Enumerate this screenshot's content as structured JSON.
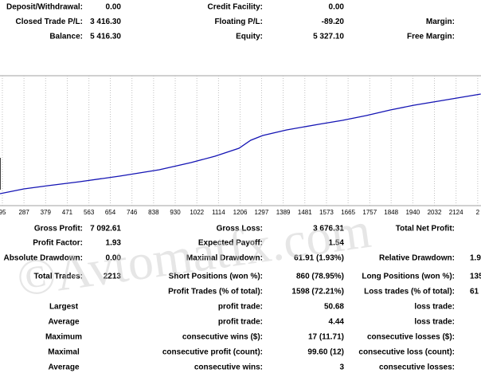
{
  "summary": {
    "rows": [
      {
        "c1": [
          "Deposit/Withdrawal:",
          "0.00"
        ],
        "c2": [
          "Credit Facility:",
          "0.00"
        ]
      },
      {
        "c1": [
          "Closed Trade P/L:",
          "3 416.30"
        ],
        "c2": [
          "Floating P/L:",
          "-89.20"
        ],
        "c3": [
          "Margin:"
        ]
      },
      {
        "c1": [
          "Balance:",
          "5 416.30"
        ],
        "c2": [
          "Equity:",
          "5 327.10"
        ],
        "c3": [
          "Free Margin:"
        ]
      }
    ]
  },
  "chart_data": {
    "type": "line",
    "x": [
      185,
      287,
      388,
      524,
      693,
      862,
      997,
      1099,
      1201,
      1251,
      1302,
      1404,
      1539,
      1641,
      1742,
      1844,
      1945,
      2047,
      2148,
      2229
    ],
    "series": [
      {
        "color": "#1414b4",
        "values": [
          2105,
          2267,
          2375,
          2510,
          2699,
          2915,
          3158,
          3374,
          3644,
          3914,
          4076,
          4265,
          4454,
          4589,
          4751,
          4940,
          5102,
          5237,
          5372,
          5480
        ]
      }
    ],
    "xlim": [
      185,
      2230
    ],
    "ylim": [
      1700,
      6100
    ],
    "xticks": [
      {
        "value": 195,
        "label": "95"
      },
      287,
      379,
      471,
      563,
      654,
      746,
      838,
      930,
      1022,
      1114,
      1206,
      1297,
      1389,
      1481,
      1573,
      1665,
      1757,
      1848,
      1940,
      2032,
      2124,
      {
        "value": 2216,
        "label": "2"
      }
    ],
    "grid": true
  },
  "report": {
    "rows": [
      {
        "c1": [
          "Gross Profit:",
          "7 092.61"
        ],
        "c2": [
          "Gross Loss:",
          "3 676.31"
        ],
        "c3": [
          "Total Net Profit:"
        ]
      },
      {
        "c1": [
          "Profit Factor:",
          "1.93"
        ],
        "c2": [
          "Expected Payoff:",
          "1.54"
        ]
      },
      {
        "c1": [
          "Absolute Drawdown:",
          "0.00"
        ],
        "c2": [
          "Maximal Drawdown:",
          "61.91 (1.93%)"
        ],
        "c3": [
          "Relative Drawdown:",
          "1.9"
        ]
      },
      {
        "c1": [
          "Total Trades:",
          "2213"
        ],
        "c2": [
          "Short Positions (won %):",
          "860 (78.95%)"
        ],
        "c3": [
          "Long Positions (won %):",
          "135"
        ]
      },
      {
        "c2": [
          "Profit Trades (% of total):",
          "1598 (72.21%)"
        ],
        "c3": [
          "Loss trades (% of total):",
          "61"
        ]
      },
      {
        "c1": [
          "Largest"
        ],
        "c2": [
          "profit trade:",
          "50.68"
        ],
        "c3": [
          "loss trade:"
        ]
      },
      {
        "c1": [
          "Average"
        ],
        "c2": [
          "profit trade:",
          "4.44"
        ],
        "c3": [
          "loss trade:"
        ]
      },
      {
        "c1": [
          "Maximum"
        ],
        "c2": [
          "consecutive wins ($):",
          "17 (11.71)"
        ],
        "c3": [
          "consecutive losses ($):"
        ]
      },
      {
        "c1": [
          "Maximal"
        ],
        "c2": [
          "consecutive profit (count):",
          "99.60 (12)"
        ],
        "c3": [
          "consecutive loss (count):"
        ]
      },
      {
        "c1": [
          "Average"
        ],
        "c2": [
          "consecutive wins:",
          "3"
        ],
        "c3": [
          "consecutive losses:"
        ]
      }
    ]
  },
  "watermark": "©Avtomatfx.com"
}
